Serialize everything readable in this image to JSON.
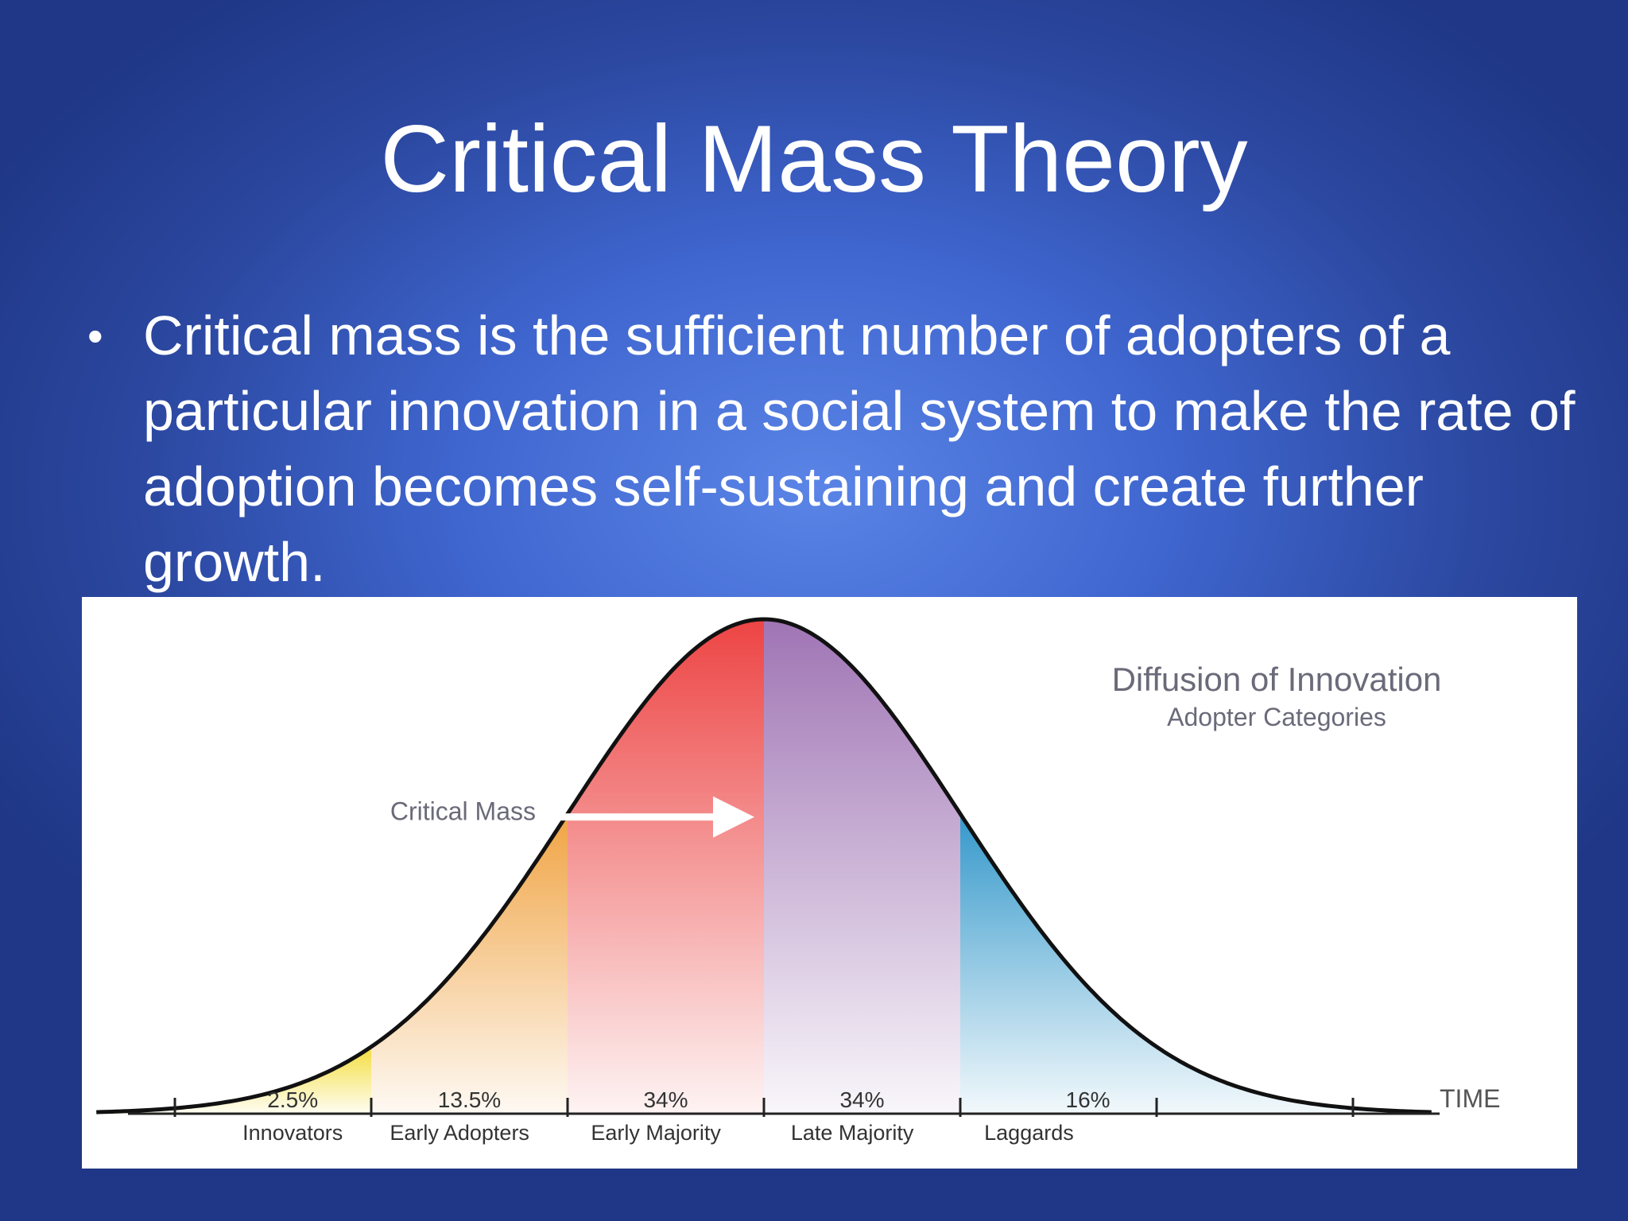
{
  "slide": {
    "title": "Critical Mass Theory",
    "bullet": "Critical mass is the sufficient number of adopters of a particular innovation in a social system to make the rate of adoption becomes self-sustaining and create further growth."
  },
  "chart_data": {
    "type": "area",
    "title": "Diffusion of Innovation",
    "subtitle": "Adopter Categories",
    "xlabel": "TIME",
    "ylabel": "",
    "grid": false,
    "legend": "none",
    "annotation": "Critical Mass",
    "categories": [
      {
        "name": "Innovators",
        "percent": "2.5%",
        "color": "#f3dc35"
      },
      {
        "name": "Early Adopters",
        "percent": "13.5%",
        "color": "#ef9f3a"
      },
      {
        "name": "Early Majority",
        "percent": "34%",
        "color": "#ec3a3a"
      },
      {
        "name": "Late Majority",
        "percent": "34%",
        "color": "#9a6db0"
      },
      {
        "name": "Laggards",
        "percent": "16%",
        "color": "#2a93c8"
      }
    ],
    "boundaries_sd": [
      -2,
      -1,
      0,
      1
    ],
    "x_range_sd": [
      -3.4,
      3.4
    ]
  }
}
